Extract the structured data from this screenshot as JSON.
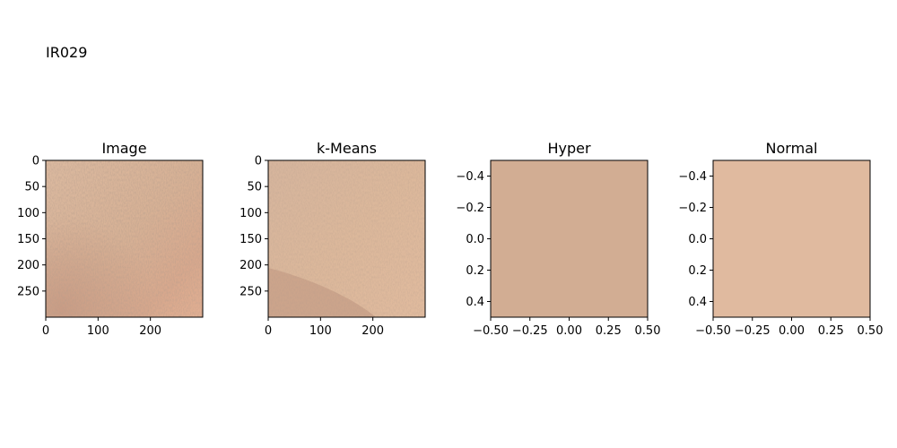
{
  "figure_label": "IR029",
  "chart_data": [
    {
      "type": "image",
      "title": "Image",
      "xlim": [
        0,
        300
      ],
      "ylim": [
        300,
        0
      ],
      "xticks": [
        0,
        100,
        200
      ],
      "yticks": [
        0,
        50,
        100,
        150,
        200,
        250
      ],
      "xtick_labels": [
        "0",
        "100",
        "200"
      ],
      "ytick_labels": [
        "0",
        "50",
        "100",
        "150",
        "200",
        "250"
      ],
      "content": "skin texture photo",
      "fill_color": "#d9b397"
    },
    {
      "type": "image",
      "title": "k-Means",
      "xlim": [
        0,
        300
      ],
      "ylim": [
        300,
        0
      ],
      "xticks": [
        0,
        100,
        200
      ],
      "yticks": [
        0,
        50,
        100,
        150,
        200,
        250
      ],
      "xtick_labels": [
        "0",
        "100",
        "200"
      ],
      "ytick_labels": [
        "0",
        "50",
        "100",
        "150",
        "200",
        "250"
      ],
      "content": "k-means segmented skin texture",
      "fill_color": "#dfb99c"
    },
    {
      "type": "image",
      "title": "Hyper",
      "xlim": [
        -0.5,
        0.5
      ],
      "ylim": [
        0.5,
        -0.5
      ],
      "xticks": [
        -0.5,
        -0.25,
        0.0,
        0.25,
        0.5
      ],
      "yticks": [
        -0.4,
        -0.2,
        0.0,
        0.2,
        0.4
      ],
      "xtick_labels": [
        "−0.50",
        "−0.25",
        "0.00",
        "0.25",
        "0.50"
      ],
      "ytick_labels": [
        "−0.4",
        "−0.2",
        "0.0",
        "0.2",
        "0.4"
      ],
      "content": "solid color swatch",
      "fill_color": "#d2ad93"
    },
    {
      "type": "image",
      "title": "Normal",
      "xlim": [
        -0.5,
        0.5
      ],
      "ylim": [
        0.5,
        -0.5
      ],
      "xticks": [
        -0.5,
        -0.25,
        0.0,
        0.25,
        0.5
      ],
      "yticks": [
        -0.4,
        -0.2,
        0.0,
        0.2,
        0.4
      ],
      "xtick_labels": [
        "−0.50",
        "−0.25",
        "0.00",
        "0.25",
        "0.50"
      ],
      "ytick_labels": [
        "−0.4",
        "−0.2",
        "0.0",
        "0.2",
        "0.4"
      ],
      "content": "solid color swatch",
      "fill_color": "#e0ba9f"
    }
  ]
}
